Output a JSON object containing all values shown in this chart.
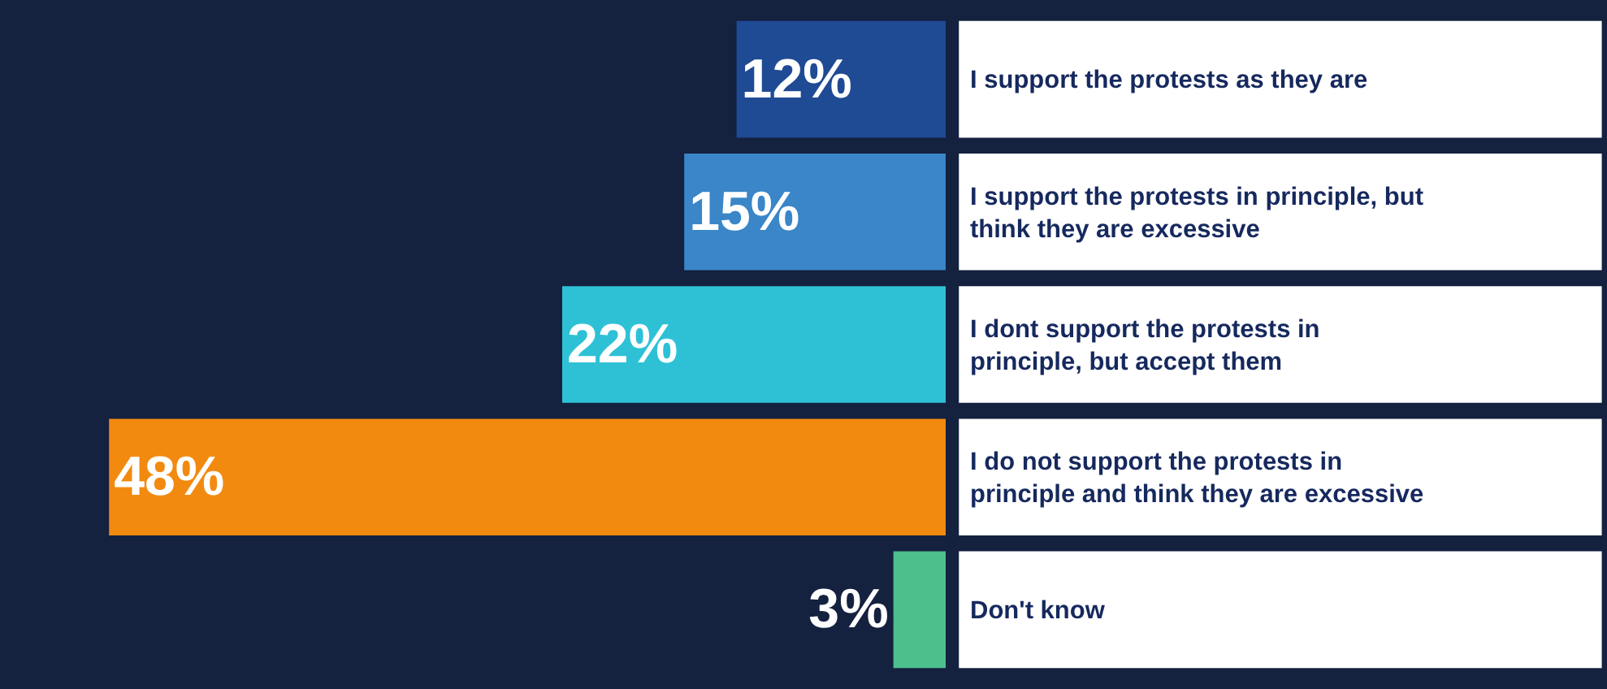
{
  "chart_data": {
    "type": "bar",
    "orientation": "horizontal",
    "categories": [
      "I support the protests as they are",
      "I support the protests in principle, but think they are excessive",
      "I dont support the protests in principle, but accept them",
      "I do not support the protests in principle and think they are excessive",
      "Don't know"
    ],
    "values": [
      12,
      15,
      22,
      48,
      3
    ],
    "colors": [
      "#1f4a94",
      "#3a86c8",
      "#2ec1d6",
      "#f28a10",
      "#4dbf8c"
    ],
    "value_labels": [
      "12%",
      "15%",
      "22%",
      "48%",
      "3%"
    ],
    "legend": false
  }
}
